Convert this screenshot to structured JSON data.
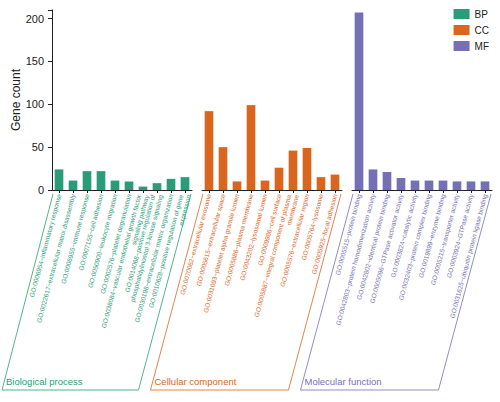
{
  "chart_data": {
    "type": "bar",
    "ylabel": "Gene count",
    "categories": [
      "GO:0006954~inflammatory response",
      "GO:0022617~extracellular matrix disassembly",
      "GO:0006955~immune response",
      "GO:0007155~cell adhesion",
      "GO:0050900~leukocyte migration",
      "GO:0002576~platelet degranulation",
      "GO:0038084~vascular endothelial growth factor signaling pathway",
      "GO:0014068~positive regulation of phosphatidylinositol 3-kinase signaling",
      "GO:0030198~extracellular matrix organization",
      "GO:0010628~positive regulation of gene expression",
      "GO:0070062~extracellular exosome",
      "GO:0005615~extracellular space",
      "GO:0031093~platelet alpha granule lumen",
      "GO:0005886~plasma membrane",
      "GO:0043202~lysosomal lumen",
      "GO:0009986~cell surface",
      "GO:0005887~integral component of plasma membrane",
      "GO:0005576~extracellular region",
      "GO:0005764~lysosome",
      "GO:0005925~focal adhesion",
      "GO:0005515~protein binding",
      "GO:0042803~protein homodimerization activity",
      "GO:0042802~identical protein binding",
      "GO:0005096~GTPase activator activity",
      "GO:0003824~catalytic activity",
      "GO:0032403~protein complex binding",
      "GO:0019899~enzyme binding",
      "GO:0005215~transporter activity",
      "GO:0003924~GTPase activity",
      "GO:0031625~ubiquitin protein ligase binding"
    ],
    "series": [
      {
        "name": "BP",
        "group": "Biological process",
        "color": "#2a9d78",
        "values": [
          24,
          11,
          22,
          22,
          11,
          10,
          4,
          8,
          13,
          15,
          null,
          null,
          null,
          null,
          null,
          null,
          null,
          null,
          null,
          null,
          null,
          null,
          null,
          null,
          null,
          null,
          null,
          null,
          null,
          null
        ]
      },
      {
        "name": "CC",
        "group": "Cellular component",
        "color": "#d9661f",
        "values": [
          null,
          null,
          null,
          null,
          null,
          null,
          null,
          null,
          null,
          null,
          92,
          50,
          10,
          99,
          11,
          26,
          46,
          49,
          15,
          18,
          null,
          null,
          null,
          null,
          null,
          null,
          null,
          null,
          null,
          null
        ]
      },
      {
        "name": "MF",
        "group": "Molecular function",
        "color": "#7570b3",
        "values": [
          null,
          null,
          null,
          null,
          null,
          null,
          null,
          null,
          null,
          null,
          null,
          null,
          null,
          null,
          null,
          null,
          null,
          null,
          null,
          null,
          207,
          24,
          21,
          14,
          11,
          11,
          11,
          10,
          10,
          10
        ]
      }
    ],
    "ylim": [
      0,
      210
    ],
    "yticks": [
      0,
      50,
      100,
      150,
      200
    ],
    "legend": "upper right"
  }
}
